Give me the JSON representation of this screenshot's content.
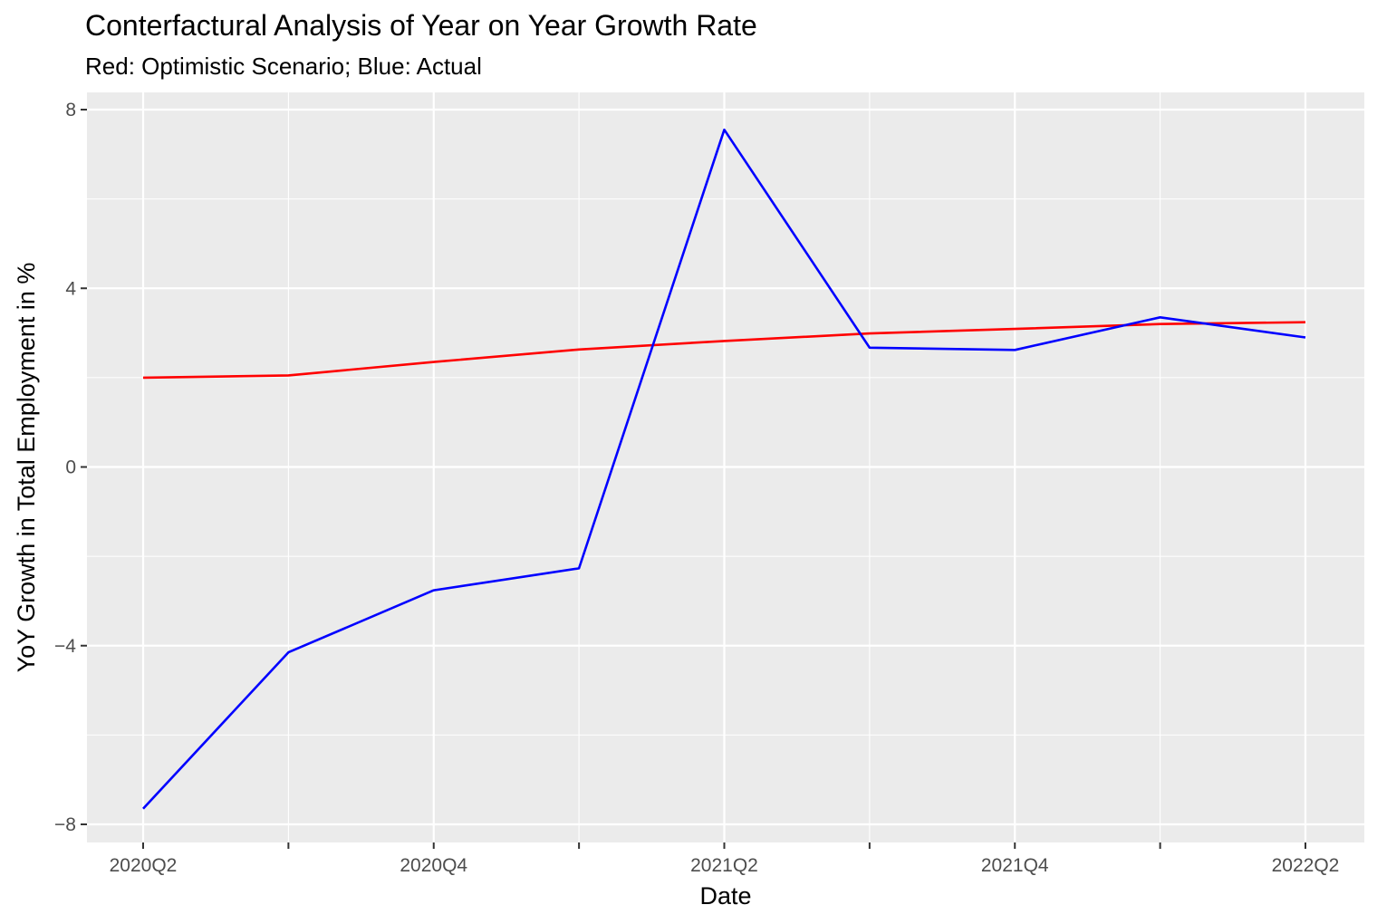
{
  "chart_data": {
    "type": "line",
    "title": "Conterfactural Analysis of Year on Year Growth Rate",
    "subtitle": "Red: Optimistic Scenario; Blue: Actual",
    "xlabel": "Date",
    "ylabel": "YoY Growth in Total Employment in %",
    "x": [
      "2020Q2",
      "2020Q3",
      "2020Q4",
      "2021Q1",
      "2021Q2",
      "2021Q3",
      "2021Q4",
      "2022Q1",
      "2022Q2"
    ],
    "x_tick_labels": [
      "2020Q2",
      "",
      "2020Q4",
      "",
      "2021Q2",
      "",
      "2021Q4",
      "",
      "2022Q2"
    ],
    "ylim": [
      -8.4,
      8.0
    ],
    "y_ticks": [
      -8,
      -4,
      0,
      4,
      8
    ],
    "y_tick_labels": [
      "-8",
      "-4",
      "0",
      "4",
      "8"
    ],
    "grid": true,
    "series": [
      {
        "key": "optimistic",
        "color": "#ff0000",
        "values": [
          2.0,
          2.05,
          2.35,
          2.63,
          2.82,
          2.99,
          3.09,
          3.2,
          3.24
        ]
      },
      {
        "key": "actual",
        "color": "#0000ff",
        "values": [
          -7.65,
          -4.15,
          -2.76,
          -2.27,
          7.55,
          2.67,
          2.62,
          3.35,
          2.9
        ]
      }
    ],
    "colors": {
      "panel_bg": "#ebebeb",
      "grid": "#ffffff",
      "tick": "#333333"
    }
  }
}
